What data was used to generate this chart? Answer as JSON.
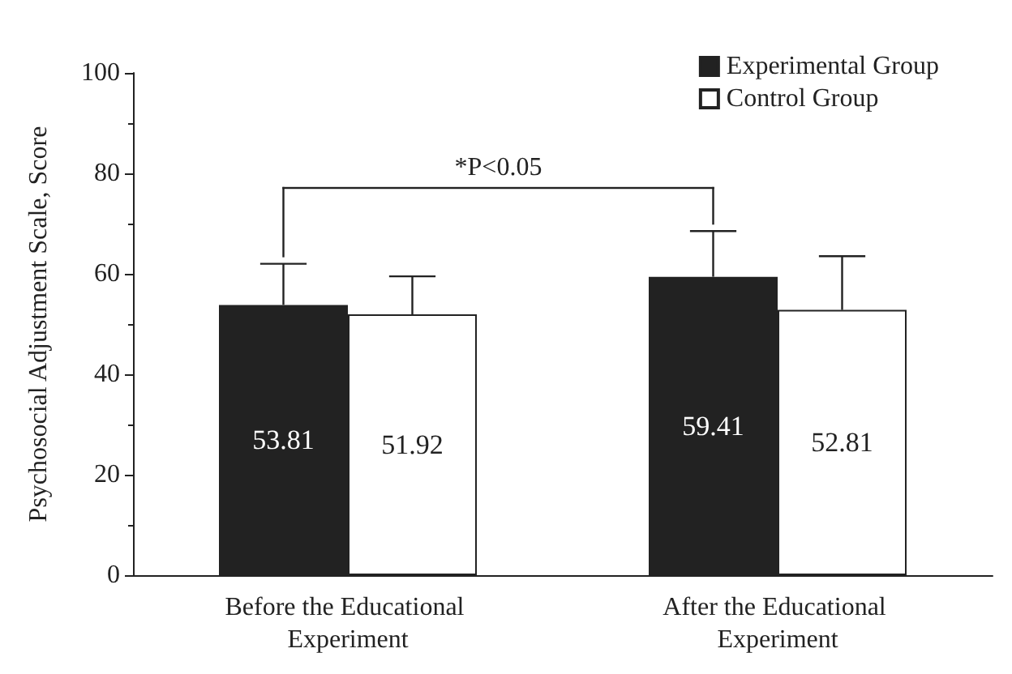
{
  "chart_data": {
    "type": "bar",
    "ylabel": "Psychosocial Adjustment Scale, Score",
    "categories": [
      "Before the Educational Experiment",
      "After the Educational Experiment"
    ],
    "series": [
      {
        "name": "Experimental Group",
        "color": "#222222",
        "values": [
          53.81,
          59.41
        ],
        "errors": [
          [
            53.81,
            62
          ],
          [
            59.41,
            68.5
          ]
        ]
      },
      {
        "name": "Control Group",
        "color": "#ffffff",
        "values": [
          51.92,
          52.81
        ],
        "errors": [
          [
            51.92,
            59.5
          ],
          [
            52.81,
            63.5
          ]
        ]
      }
    ],
    "ylim": [
      0,
      100
    ],
    "yticks": [
      0,
      20,
      40,
      60,
      80,
      100
    ],
    "data_labels": true,
    "legend": "top right",
    "grid": false,
    "annotations": [
      "*P<0.05"
    ]
  }
}
